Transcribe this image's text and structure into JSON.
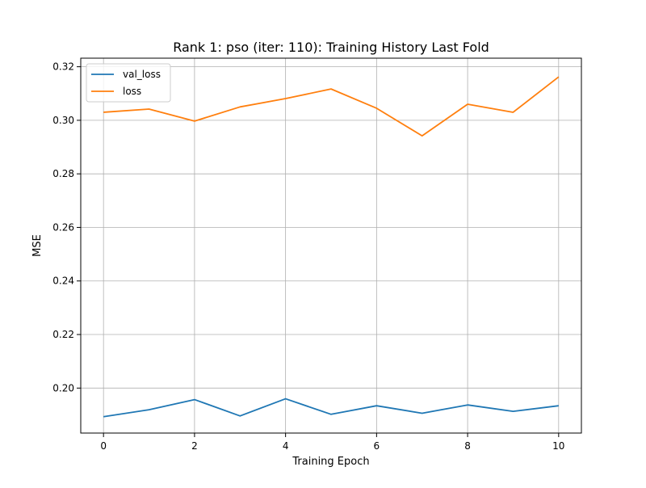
{
  "chart_data": {
    "type": "line",
    "title": "Rank 1: pso (iter: 110): Training History Last Fold",
    "xlabel": "Training Epoch",
    "ylabel": "MSE",
    "x": [
      0,
      1,
      2,
      3,
      4,
      5,
      6,
      7,
      8,
      9,
      10
    ],
    "xlim": [
      -0.5,
      10.5
    ],
    "ylim": [
      0.1832,
      0.3232
    ],
    "xticks": [
      0,
      2,
      4,
      6,
      8,
      10
    ],
    "xtick_labels": [
      "0",
      "2",
      "4",
      "6",
      "8",
      "10"
    ],
    "yticks": [
      0.2,
      0.22,
      0.24,
      0.26,
      0.28,
      0.3,
      0.32
    ],
    "ytick_labels": [
      "0.20",
      "0.22",
      "0.24",
      "0.26",
      "0.28",
      "0.30",
      "0.32"
    ],
    "grid": true,
    "legend_position": "upper-left",
    "series": [
      {
        "name": "val_loss",
        "color": "#1f77b4",
        "values": [
          0.1893,
          0.1919,
          0.1957,
          0.1896,
          0.196,
          0.1902,
          0.1934,
          0.1906,
          0.1937,
          0.1913,
          0.1934
        ]
      },
      {
        "name": "loss",
        "color": "#ff7f0e",
        "values": [
          0.303,
          0.3042,
          0.2997,
          0.305,
          0.3081,
          0.3117,
          0.3045,
          0.2942,
          0.306,
          0.303,
          0.3162
        ]
      }
    ]
  }
}
